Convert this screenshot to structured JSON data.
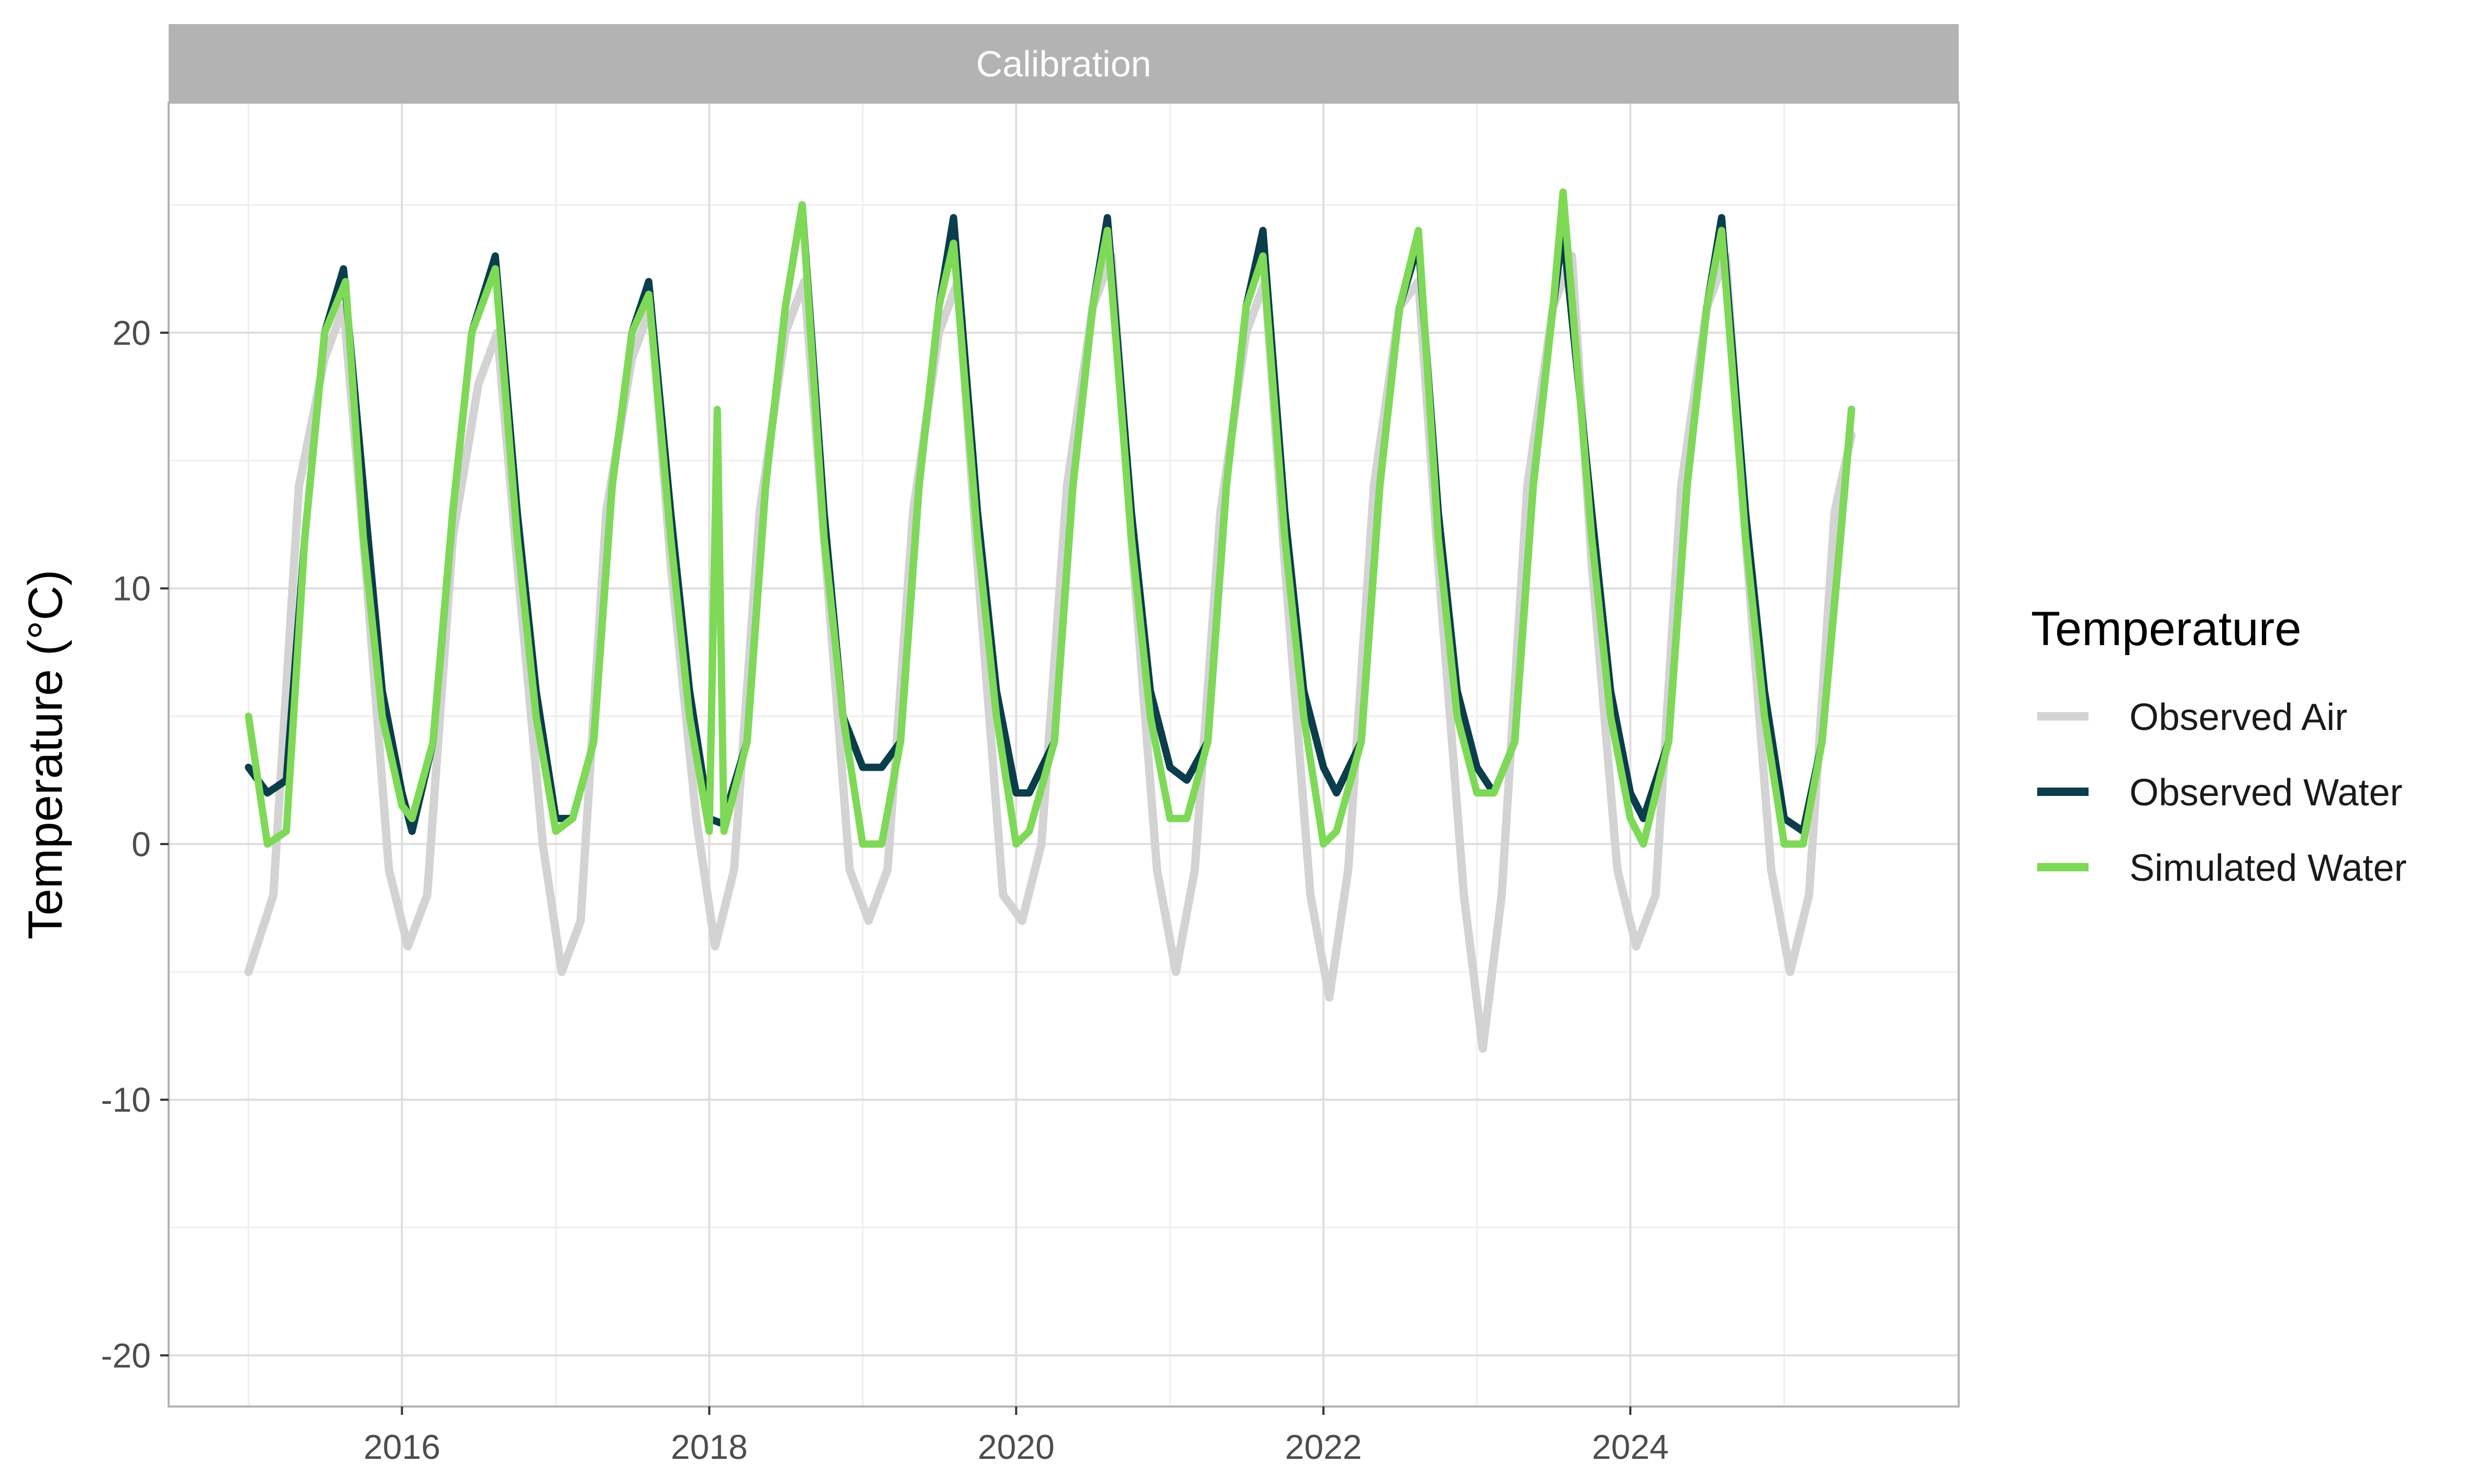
{
  "chart_data": {
    "type": "line",
    "facet_label": "Calibration",
    "xlabel": "",
    "ylabel": "Temperature (°C)",
    "x_ticks": [
      "2016",
      "2018",
      "2020",
      "2022",
      "2024"
    ],
    "y_ticks": [
      "-20",
      "-10",
      "0",
      "10",
      "20"
    ],
    "xlim": [
      "2014-06-25",
      "2026-02-20"
    ],
    "ylim": [
      -22,
      29
    ],
    "grid": true,
    "legend": {
      "title": "Temperature",
      "position": "right",
      "entries": [
        "Observed Air",
        "Observed Water",
        "Simulated Water"
      ]
    },
    "colors": {
      "observed_air": "#d3d3d3",
      "observed_water": "#0b3d4c",
      "simulated_water": "#7ed957",
      "strip": "#b3b3b3",
      "grid_major": "#dedede",
      "grid_minor": "#eeeeee",
      "border": "#b3b3b3"
    },
    "series": [
      {
        "name": "Observed Air",
        "x": [
          "2015-01-01",
          "2015-03-01",
          "2015-05-01",
          "2015-07-01",
          "2015-08-15",
          "2015-10-01",
          "2015-12-01",
          "2016-01-15",
          "2016-03-01",
          "2016-05-01",
          "2016-07-01",
          "2016-08-15",
          "2016-10-01",
          "2016-12-01",
          "2017-01-15",
          "2017-03-01",
          "2017-05-01",
          "2017-07-01",
          "2017-08-15",
          "2017-10-01",
          "2017-12-01",
          "2018-01-15",
          "2018-03-01",
          "2018-05-01",
          "2018-07-01",
          "2018-08-15",
          "2018-10-01",
          "2018-12-01",
          "2019-01-15",
          "2019-03-01",
          "2019-05-01",
          "2019-07-01",
          "2019-08-15",
          "2019-10-01",
          "2019-12-01",
          "2020-01-15",
          "2020-03-01",
          "2020-05-01",
          "2020-07-01",
          "2020-08-15",
          "2020-10-01",
          "2020-12-01",
          "2021-01-15",
          "2021-03-01",
          "2021-05-01",
          "2021-07-01",
          "2021-08-15",
          "2021-10-01",
          "2021-12-01",
          "2022-01-15",
          "2022-03-01",
          "2022-05-01",
          "2022-07-01",
          "2022-08-15",
          "2022-10-01",
          "2022-12-01",
          "2023-01-15",
          "2023-03-01",
          "2023-05-01",
          "2023-07-01",
          "2023-08-15",
          "2023-10-01",
          "2023-12-01",
          "2024-01-15",
          "2024-03-01",
          "2024-05-01",
          "2024-07-01",
          "2024-08-15",
          "2024-10-01",
          "2024-12-01",
          "2025-01-15",
          "2025-03-01",
          "2025-05-01",
          "2025-06-10"
        ],
        "values": [
          -5,
          -2,
          14,
          19,
          21,
          12,
          -1,
          -4,
          -2,
          12,
          18,
          20,
          11,
          0,
          -5,
          -3,
          13,
          19,
          21,
          11,
          1,
          -4,
          -1,
          13,
          20,
          22,
          12,
          -1,
          -3,
          -1,
          13,
          20,
          22,
          11,
          -2,
          -3,
          0,
          14,
          21,
          23,
          12,
          -1,
          -5,
          -1,
          13,
          20,
          22,
          11,
          -2,
          -6,
          -1,
          14,
          21,
          22,
          11,
          -2,
          -8,
          -2,
          14,
          21,
          23,
          11,
          -1,
          -4,
          -2,
          14,
          21,
          23,
          12,
          -1,
          -5,
          -2,
          13,
          16
        ]
      },
      {
        "name": "Observed Water",
        "x": [
          "2015-01-01",
          "2015-02-15",
          "2015-04-01",
          "2015-05-15",
          "2015-07-01",
          "2015-08-15",
          "2015-10-01",
          "2015-11-15",
          "2016-01-01",
          "2016-01-25",
          "2016-03-15",
          "2016-05-01",
          "2016-06-15",
          "2016-08-10",
          "2016-10-01",
          "2016-11-15",
          "2017-01-01",
          "2017-02-10",
          "2017-04-01",
          "2017-05-15",
          "2017-07-01",
          "2017-08-10",
          "2017-10-01",
          "2017-11-15",
          "2018-01-01",
          "2018-02-01",
          "2018-04-01",
          "2018-05-15",
          "2018-07-01",
          "2018-08-10",
          "2018-10-01",
          "2018-11-15",
          "2019-01-01",
          "2019-02-15",
          "2019-04-01",
          "2019-05-15",
          "2019-07-01",
          "2019-08-05",
          "2019-10-01",
          "2019-11-15",
          "2020-01-01",
          "2020-02-01",
          "2020-04-01",
          "2020-05-15",
          "2020-07-01",
          "2020-08-05",
          "2020-10-01",
          "2020-11-15",
          "2021-01-01",
          "2021-02-10",
          "2021-04-01",
          "2021-05-15",
          "2021-07-01",
          "2021-08-10",
          "2021-10-01",
          "2021-11-15",
          "2022-01-01",
          "2022-02-01",
          "2022-04-01",
          "2022-05-15",
          "2022-07-01",
          "2022-08-15",
          "2022-10-01",
          "2022-11-15",
          "2023-01-01",
          "2023-02-10",
          "2023-04-01",
          "2023-05-15",
          "2023-07-01",
          "2023-07-25",
          "2023-10-01",
          "2023-11-15",
          "2024-01-01",
          "2024-02-01",
          "2024-04-01",
          "2024-05-15",
          "2024-07-01",
          "2024-08-05",
          "2024-10-01",
          "2024-11-15",
          "2025-01-01",
          "2025-02-15",
          "2025-04-01",
          "2025-05-15",
          "2025-06-10"
        ],
        "values": [
          3,
          2,
          2.5,
          12,
          20,
          22.5,
          14,
          6,
          2,
          0.5,
          4,
          13,
          20,
          23,
          13,
          6,
          1,
          1,
          4,
          14,
          20,
          22,
          13,
          6,
          1,
          0.8,
          4,
          14,
          21,
          25,
          13,
          5,
          3,
          3,
          4,
          14,
          21,
          24.5,
          13,
          6,
          2,
          2,
          4,
          14,
          21,
          24.5,
          13,
          6,
          3,
          2.5,
          4,
          14,
          21,
          24,
          13,
          6,
          3,
          2,
          4,
          14,
          21,
          23.5,
          13,
          6,
          3,
          2,
          4,
          14,
          21,
          24,
          13,
          6,
          2,
          1,
          4,
          14,
          21,
          24.5,
          13,
          6,
          1,
          0.5,
          4,
          12,
          17
        ]
      },
      {
        "name": "Simulated Water",
        "x": [
          "2015-01-01",
          "2015-02-15",
          "2015-04-01",
          "2015-05-15",
          "2015-07-01",
          "2015-08-20",
          "2015-10-01",
          "2015-11-15",
          "2016-01-01",
          "2016-01-25",
          "2016-03-15",
          "2016-05-01",
          "2016-06-15",
          "2016-08-10",
          "2016-10-01",
          "2016-11-15",
          "2017-01-01",
          "2017-02-10",
          "2017-04-01",
          "2017-05-15",
          "2017-07-01",
          "2017-08-10",
          "2017-10-01",
          "2017-11-15",
          "2018-01-01",
          "2018-01-20",
          "2018-02-05",
          "2018-04-01",
          "2018-05-15",
          "2018-07-01",
          "2018-08-10",
          "2018-10-01",
          "2018-11-15",
          "2019-01-01",
          "2019-02-15",
          "2019-04-01",
          "2019-05-15",
          "2019-07-01",
          "2019-08-05",
          "2019-10-01",
          "2019-11-15",
          "2020-01-01",
          "2020-02-01",
          "2020-04-01",
          "2020-05-15",
          "2020-07-01",
          "2020-08-05",
          "2020-10-01",
          "2020-11-15",
          "2021-01-01",
          "2021-02-10",
          "2021-04-01",
          "2021-05-15",
          "2021-07-01",
          "2021-08-10",
          "2021-10-01",
          "2021-11-15",
          "2022-01-01",
          "2022-02-01",
          "2022-04-01",
          "2022-05-15",
          "2022-07-01",
          "2022-08-15",
          "2022-10-01",
          "2022-11-15",
          "2023-01-01",
          "2023-02-10",
          "2023-04-01",
          "2023-05-15",
          "2023-07-01",
          "2023-07-25",
          "2023-10-01",
          "2023-11-15",
          "2024-01-01",
          "2024-02-01",
          "2024-04-01",
          "2024-05-15",
          "2024-07-01",
          "2024-08-05",
          "2024-10-01",
          "2024-11-15",
          "2025-01-01",
          "2025-02-15",
          "2025-04-01",
          "2025-05-15",
          "2025-06-10"
        ],
        "values": [
          5,
          0,
          0.5,
          12,
          20,
          22,
          12,
          5,
          1.5,
          1,
          4,
          13,
          20,
          22.5,
          12,
          5,
          0.5,
          1,
          4,
          14,
          20,
          21.5,
          12,
          5,
          0.5,
          17,
          0.5,
          4,
          14,
          21,
          25,
          12,
          5,
          0,
          0,
          4,
          14,
          21,
          23.5,
          12,
          5,
          0,
          0.5,
          4,
          14,
          21,
          24,
          12,
          5,
          1,
          1,
          4,
          14,
          21,
          23,
          12,
          5,
          0,
          0.5,
          4,
          14,
          21,
          24,
          12,
          5,
          2,
          2,
          4,
          14,
          21,
          25.5,
          12,
          5,
          1,
          0,
          4,
          14,
          21,
          24,
          12,
          5,
          0,
          0,
          4,
          12,
          17
        ]
      }
    ]
  }
}
